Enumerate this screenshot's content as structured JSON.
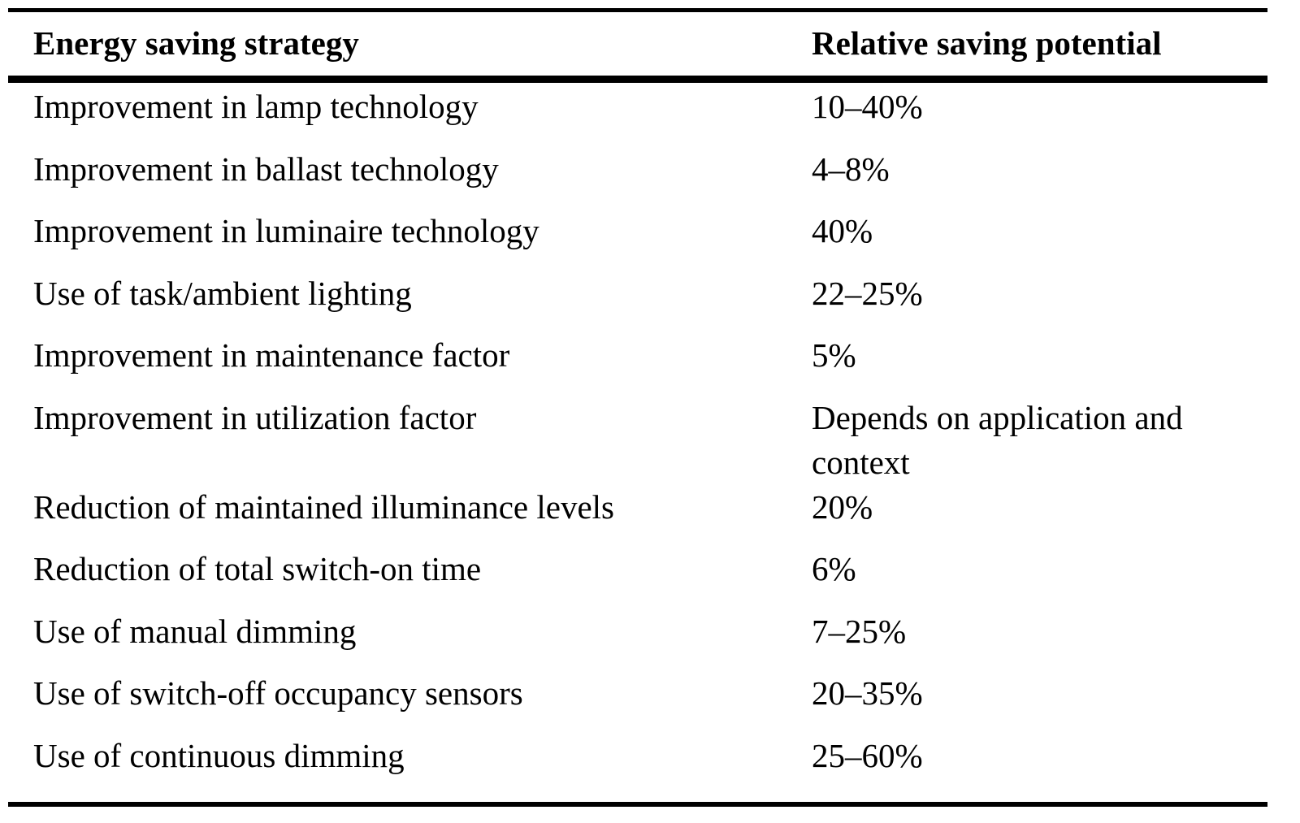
{
  "table": {
    "headers": {
      "strategy": "Energy saving strategy",
      "saving": "Relative saving potential"
    },
    "rows": [
      {
        "strategy": "Improvement in lamp technology",
        "saving": "10–40%"
      },
      {
        "strategy": "Improvement in ballast technology",
        "saving": "4–8%"
      },
      {
        "strategy": "Improvement in luminaire technology",
        "saving": "40%"
      },
      {
        "strategy": "Use of task/ambient lighting",
        "saving": "22–25%"
      },
      {
        "strategy": "Improvement in maintenance factor",
        "saving": "5%"
      },
      {
        "strategy": "Improvement in utilization factor",
        "saving": "Depends on application and context"
      },
      {
        "strategy": "Reduction of maintained illuminance levels",
        "saving": "20%"
      },
      {
        "strategy": "Reduction of total switch-on time",
        "saving": "6%"
      },
      {
        "strategy": "Use of manual dimming",
        "saving": "7–25%"
      },
      {
        "strategy": "Use of switch-off occupancy sensors",
        "saving": "20–35%"
      },
      {
        "strategy": "Use of continuous dimming",
        "saving": "25–60%"
      }
    ]
  }
}
